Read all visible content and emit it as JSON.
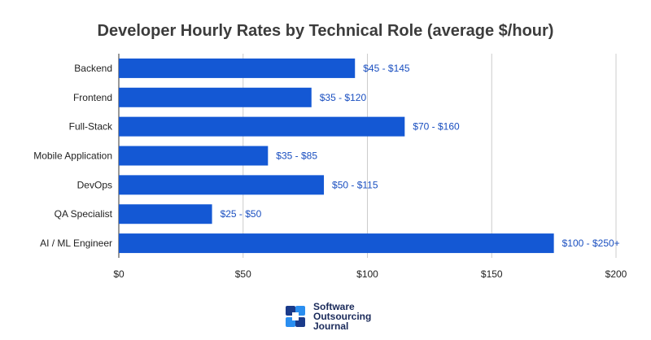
{
  "chart_data": {
    "type": "bar",
    "orientation": "horizontal",
    "title": "Developer Hourly Rates by Technical Role (average $/hour)",
    "categories": [
      "Backend",
      "Frontend",
      "Full-Stack",
      "Mobile Application",
      "DevOps",
      "QA Specialist",
      "AI / ML Engineer"
    ],
    "values": [
      95,
      77.5,
      115,
      60,
      82.5,
      37.5,
      175
    ],
    "data_labels": [
      "$45 - $145",
      "$35 - $120",
      "$70 - $160",
      "$35 - $85",
      "$50 - $115",
      "$25 - $50",
      "$100 - $250+"
    ],
    "xlim": [
      0,
      200
    ],
    "xticks": [
      0,
      50,
      100,
      150,
      200
    ],
    "xtick_labels": [
      "$0",
      "$50",
      "$100",
      "$150",
      "$200"
    ],
    "grid": true,
    "bar_color": "#1458d4",
    "label_color": "#1a4fc0"
  },
  "branding": {
    "line1": "Software",
    "line2": "Outsourcing",
    "line3": "Journal"
  }
}
